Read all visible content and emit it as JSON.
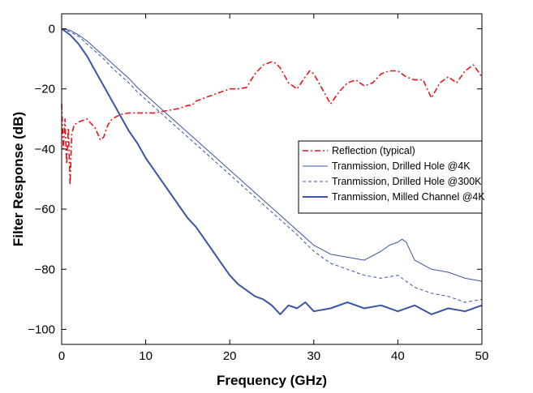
{
  "chart_data": {
    "type": "line",
    "xlabel": "Frequency (GHz)",
    "ylabel": "Filter Response (dB)",
    "xlim": [
      0,
      50
    ],
    "ylim": [
      -105,
      5
    ],
    "x_ticks": [
      0,
      10,
      20,
      30,
      40,
      50
    ],
    "y_ticks": [
      0,
      -20,
      -40,
      -60,
      -80,
      -100
    ],
    "x_tick_labels": [
      "0",
      "10",
      "20",
      "30",
      "40",
      "50"
    ],
    "y_tick_labels": [
      "0",
      "−20",
      "−40",
      "−60",
      "−80",
      "−100"
    ],
    "grid": false,
    "legend_position": "right",
    "series": [
      {
        "name": "Reflection (typical)",
        "style": "dashdot",
        "color": "#e8141a",
        "x": [
          0,
          0.2,
          0.4,
          0.6,
          0.8,
          1.0,
          1.2,
          1.5,
          2,
          3,
          4,
          4.6,
          5,
          5.5,
          6,
          7,
          8,
          9,
          10,
          11,
          12,
          13,
          14,
          15,
          15.5,
          16,
          17,
          18,
          19,
          20,
          21,
          22,
          23,
          24,
          25,
          25.5,
          26,
          27,
          28,
          29,
          29.5,
          30,
          31,
          32,
          33,
          34,
          35,
          36,
          37,
          38,
          39,
          40,
          41,
          42,
          43,
          44,
          45,
          46,
          47,
          48,
          49,
          50
        ],
        "y": [
          -25,
          -40,
          -30,
          -45,
          -33,
          -52,
          -35,
          -32,
          -31,
          -30,
          -33,
          -37,
          -36,
          -32,
          -30,
          -28.5,
          -28,
          -28,
          -28,
          -28,
          -27.5,
          -27,
          -26.5,
          -25.5,
          -25.5,
          -24,
          -23,
          -22,
          -21,
          -20,
          -20,
          -19.5,
          -15,
          -12,
          -11,
          -11.5,
          -13,
          -18,
          -20,
          -16,
          -14,
          -15,
          -20,
          -25,
          -21,
          -18,
          -17,
          -19,
          -18,
          -15,
          -14,
          -14,
          -16,
          -17,
          -17,
          -23,
          -18,
          -16,
          -18,
          -14,
          -12,
          -16
        ]
      },
      {
        "name": "Tranmission, Drilled Hole @4K",
        "style": "solid-thin",
        "color": "#3a55a4",
        "x": [
          0,
          1,
          2,
          3,
          4,
          5,
          6,
          7,
          8,
          9,
          10,
          12,
          14,
          16,
          18,
          20,
          22,
          24,
          26,
          28,
          30,
          32,
          34,
          36,
          38,
          39,
          40,
          40.5,
          41,
          42,
          44,
          46,
          48,
          50
        ],
        "y": [
          0,
          -0.5,
          -2,
          -4,
          -6.5,
          -9,
          -11.5,
          -14,
          -16.5,
          -19.5,
          -22,
          -27,
          -32,
          -37,
          -42,
          -47,
          -52,
          -57,
          -62,
          -67,
          -72,
          -75,
          -76,
          -77,
          -74,
          -72,
          -71,
          -70,
          -71,
          -77,
          -80,
          -81,
          -83,
          -84
        ]
      },
      {
        "name": "Tranmission, Drilled Hole @300K",
        "style": "dashed",
        "color": "#3a55a4",
        "x": [
          0,
          1,
          2,
          3,
          4,
          5,
          6,
          7,
          8,
          9,
          10,
          12,
          14,
          16,
          18,
          20,
          22,
          24,
          26,
          28,
          30,
          32,
          34,
          36,
          38,
          40,
          42,
          44,
          46,
          48,
          50
        ],
        "y": [
          0,
          -1,
          -2.5,
          -5,
          -7.5,
          -10,
          -13,
          -15.5,
          -18,
          -21,
          -23.5,
          -28.5,
          -33.5,
          -38.5,
          -43.5,
          -48.5,
          -53.5,
          -58.5,
          -63.5,
          -68.5,
          -74,
          -78,
          -80,
          -82,
          -83,
          -82,
          -86,
          -88,
          -89,
          -91,
          -90
        ]
      },
      {
        "name": "Tranmission, Milled Channel @4K",
        "style": "solid-thick",
        "color": "#3a55a4",
        "x": [
          0,
          1,
          2,
          3,
          4,
          5,
          6,
          7,
          8,
          9,
          10,
          11,
          12,
          13,
          14,
          15,
          16,
          17,
          18,
          19,
          20,
          21,
          22,
          23,
          24,
          25,
          26,
          27,
          28,
          29,
          30,
          32,
          34,
          36,
          38,
          40,
          42,
          44,
          46,
          48,
          50
        ],
        "y": [
          0,
          -2,
          -5,
          -9,
          -14,
          -19,
          -24,
          -29,
          -34,
          -38,
          -43,
          -47,
          -51,
          -55,
          -59,
          -63,
          -66,
          -70,
          -74,
          -78,
          -82,
          -85,
          -87,
          -89,
          -90,
          -92,
          -95,
          -92,
          -93,
          -91,
          -94,
          -93,
          -91,
          -93,
          -92,
          -94,
          -92,
          -95,
          -93,
          -94,
          -92
        ]
      }
    ]
  }
}
